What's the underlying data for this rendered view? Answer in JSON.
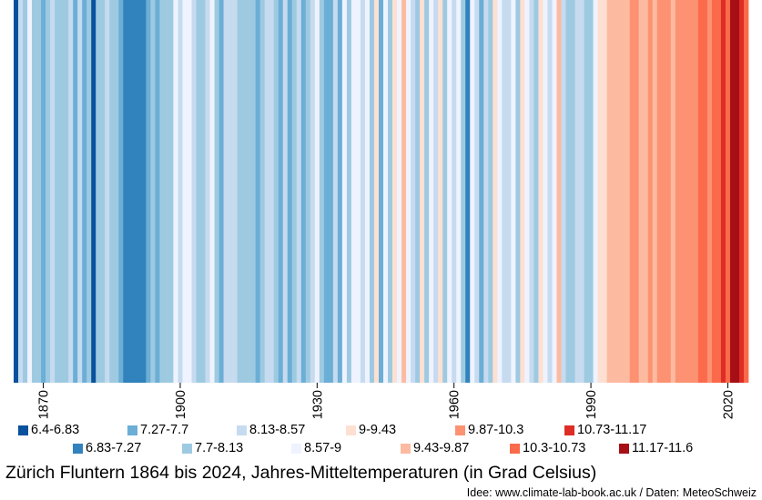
{
  "chart_data": {
    "type": "heatmap",
    "kind": "warming-stripes",
    "title": "Zürich Fluntern 1864 bis 2024, Jahres-Mitteltemperaturen (in Grad Celsius)",
    "credit": "Idee: www.climate-lab-book.ac.uk / Daten: MeteoSchweiz",
    "xlim": [
      1864,
      2024
    ],
    "ticks": [
      1870,
      1900,
      1930,
      1960,
      1990,
      2020
    ],
    "tick_labels": [
      "1870",
      "1900",
      "1930",
      "1960",
      "1990",
      "2020"
    ],
    "bins": [
      {
        "label": "6.4-6.83",
        "color": "#08519c"
      },
      {
        "label": "6.83-7.27",
        "color": "#3182bd"
      },
      {
        "label": "7.27-7.7",
        "color": "#6baed6"
      },
      {
        "label": "7.7-8.13",
        "color": "#9ecae1"
      },
      {
        "label": "8.13-8.57",
        "color": "#c6dbef"
      },
      {
        "label": "8.57-9",
        "color": "#eff3ff"
      },
      {
        "label": "9-9.43",
        "color": "#fee0d2"
      },
      {
        "label": "9.43-9.87",
        "color": "#fcbba1"
      },
      {
        "label": "9.87-10.3",
        "color": "#fc9272"
      },
      {
        "label": "10.3-10.73",
        "color": "#fb6a4a"
      },
      {
        "label": "10.73-11.17",
        "color": "#de2d26"
      },
      {
        "label": "11.17-11.6",
        "color": "#a50f15"
      }
    ],
    "years": [
      1864,
      1865,
      1866,
      1867,
      1868,
      1869,
      1870,
      1871,
      1872,
      1873,
      1874,
      1875,
      1876,
      1877,
      1878,
      1879,
      1880,
      1881,
      1882,
      1883,
      1884,
      1885,
      1886,
      1887,
      1888,
      1889,
      1890,
      1891,
      1892,
      1893,
      1894,
      1895,
      1896,
      1897,
      1898,
      1899,
      1900,
      1901,
      1902,
      1903,
      1904,
      1905,
      1906,
      1907,
      1908,
      1909,
      1910,
      1911,
      1912,
      1913,
      1914,
      1915,
      1916,
      1917,
      1918,
      1919,
      1920,
      1921,
      1922,
      1923,
      1924,
      1925,
      1926,
      1927,
      1928,
      1929,
      1930,
      1931,
      1932,
      1933,
      1934,
      1935,
      1936,
      1937,
      1938,
      1939,
      1940,
      1941,
      1942,
      1943,
      1944,
      1945,
      1946,
      1947,
      1948,
      1949,
      1950,
      1951,
      1952,
      1953,
      1954,
      1955,
      1956,
      1957,
      1958,
      1959,
      1960,
      1961,
      1962,
      1963,
      1964,
      1965,
      1966,
      1967,
      1968,
      1969,
      1970,
      1971,
      1972,
      1973,
      1974,
      1975,
      1976,
      1977,
      1978,
      1979,
      1980,
      1981,
      1982,
      1983,
      1984,
      1985,
      1986,
      1987,
      1988,
      1989,
      1990,
      1991,
      1992,
      1993,
      1994,
      1995,
      1996,
      1997,
      1998,
      1999,
      2000,
      2001,
      2002,
      2003,
      2004,
      2005,
      2006,
      2007,
      2008,
      2009,
      2010,
      2011,
      2012,
      2013,
      2014,
      2015,
      2016,
      2017,
      2018,
      2019,
      2020,
      2021,
      2022,
      2023,
      2024
    ],
    "bin_index": [
      0,
      4,
      3,
      5,
      3,
      3,
      2,
      3,
      4,
      3,
      3,
      3,
      4,
      2,
      4,
      2,
      3,
      0,
      3,
      3,
      4,
      3,
      3,
      2,
      1,
      1,
      1,
      1,
      1,
      2,
      3,
      2,
      3,
      3,
      3,
      5,
      4,
      5,
      5,
      4,
      3,
      3,
      4,
      5,
      3,
      2,
      4,
      4,
      4,
      3,
      3,
      3,
      3,
      2,
      3,
      4,
      4,
      3,
      2,
      4,
      2,
      3,
      4,
      2,
      3,
      4,
      5,
      3,
      2,
      2,
      4,
      2,
      5,
      3,
      5,
      5,
      4,
      5,
      3,
      6,
      2,
      5,
      3,
      6,
      5,
      7,
      5,
      4,
      3,
      6,
      3,
      5,
      4,
      6,
      3,
      5,
      4,
      5,
      3,
      1,
      5,
      4,
      2,
      4,
      3,
      6,
      5,
      4,
      4,
      5,
      3,
      6,
      5,
      4,
      3,
      6,
      5,
      4,
      5,
      7,
      4,
      3,
      3,
      4,
      4,
      3,
      3,
      5,
      6,
      6,
      7,
      7,
      7,
      7,
      7,
      8,
      8,
      7,
      7,
      8,
      7,
      8,
      8,
      8,
      7,
      8,
      8,
      8,
      8,
      8,
      9,
      9,
      8,
      9,
      9,
      10,
      9,
      11,
      11,
      10,
      9
    ]
  }
}
